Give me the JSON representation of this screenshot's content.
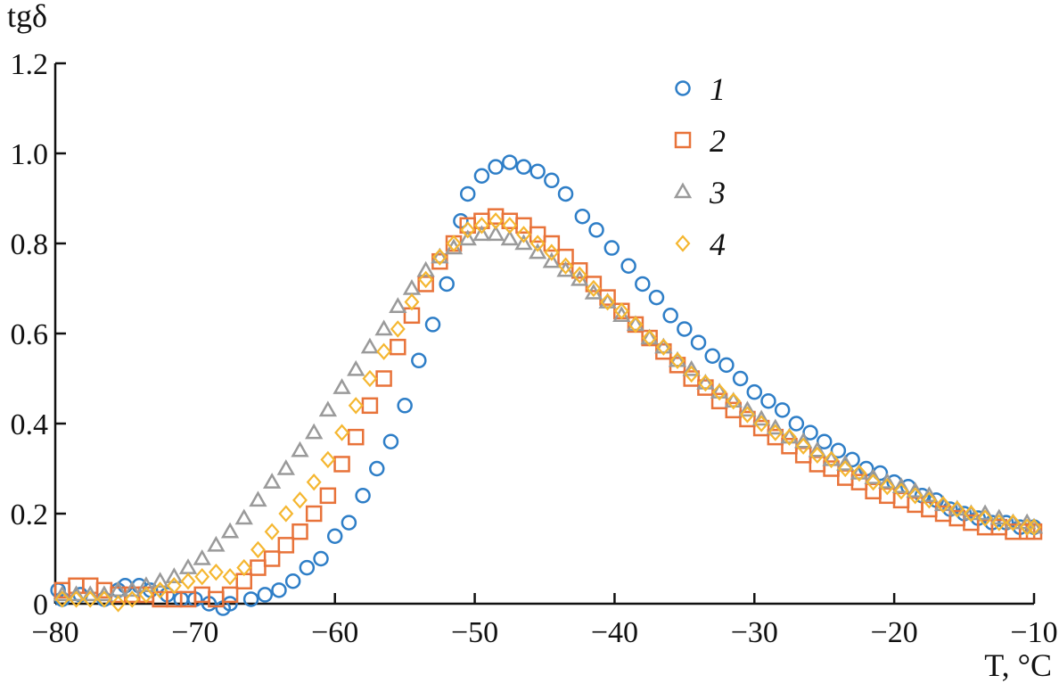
{
  "chart_data": {
    "type": "scatter",
    "title": "",
    "xlabel": "T, °C",
    "ylabel": "tgδ",
    "xlim": [
      -80,
      -10
    ],
    "ylim": [
      0,
      1.2
    ],
    "xticks": [
      -80,
      -70,
      -60,
      -50,
      -40,
      -30,
      -20,
      -10
    ],
    "xtick_labels": [
      "−80",
      "−70",
      "−60",
      "−50",
      "−40",
      "−30",
      "−20",
      "−10"
    ],
    "yticks": [
      0,
      0.2,
      0.4,
      0.6,
      0.8,
      1.0,
      1.2
    ],
    "ytick_labels": [
      "0",
      "0.2",
      "0.4",
      "0.6",
      "0.8",
      "1.0",
      "1.2"
    ],
    "grid": false,
    "legend_position": "top-right",
    "series": [
      {
        "name": "1",
        "marker": "circle",
        "color": "#2E7EC7",
        "points": [
          [
            -79.8,
            0.03
          ],
          [
            -79.5,
            0.01
          ],
          [
            -78.2,
            0.02
          ],
          [
            -76.5,
            0.01
          ],
          [
            -75.5,
            0.03
          ],
          [
            -75,
            0.04
          ],
          [
            -74,
            0.04
          ],
          [
            -73.2,
            0.03
          ],
          [
            -72,
            0.02
          ],
          [
            -71,
            0.01
          ],
          [
            -70,
            0.01
          ],
          [
            -69,
            0.0
          ],
          [
            -68,
            -0.01
          ],
          [
            -67.5,
            0.0
          ],
          [
            -66,
            0.01
          ],
          [
            -65,
            0.02
          ],
          [
            -64,
            0.03
          ],
          [
            -63,
            0.05
          ],
          [
            -62,
            0.08
          ],
          [
            -61,
            0.1
          ],
          [
            -60,
            0.15
          ],
          [
            -59,
            0.18
          ],
          [
            -58,
            0.24
          ],
          [
            -57,
            0.3
          ],
          [
            -56,
            0.36
          ],
          [
            -55,
            0.44
          ],
          [
            -54,
            0.54
          ],
          [
            -53,
            0.62
          ],
          [
            -52,
            0.71
          ],
          [
            -51,
            0.85
          ],
          [
            -50.5,
            0.91
          ],
          [
            -49.5,
            0.95
          ],
          [
            -48.5,
            0.97
          ],
          [
            -47.5,
            0.98
          ],
          [
            -46.5,
            0.97
          ],
          [
            -45.5,
            0.96
          ],
          [
            -44.5,
            0.94
          ],
          [
            -43.5,
            0.91
          ],
          [
            -42.3,
            0.86
          ],
          [
            -41.3,
            0.83
          ],
          [
            -40.2,
            0.79
          ],
          [
            -39,
            0.75
          ],
          [
            -38,
            0.71
          ],
          [
            -37,
            0.68
          ],
          [
            -36,
            0.64
          ],
          [
            -35,
            0.61
          ],
          [
            -34,
            0.58
          ],
          [
            -33,
            0.55
          ],
          [
            -32,
            0.53
          ],
          [
            -31,
            0.5
          ],
          [
            -30,
            0.47
          ],
          [
            -29,
            0.45
          ],
          [
            -28,
            0.43
          ],
          [
            -27,
            0.4
          ],
          [
            -26,
            0.38
          ],
          [
            -25,
            0.36
          ],
          [
            -24,
            0.34
          ],
          [
            -23,
            0.32
          ],
          [
            -22,
            0.3
          ],
          [
            -21,
            0.29
          ],
          [
            -20,
            0.27
          ],
          [
            -19,
            0.26
          ],
          [
            -18,
            0.24
          ],
          [
            -17,
            0.23
          ],
          [
            -16,
            0.21
          ],
          [
            -15,
            0.2
          ],
          [
            -14,
            0.19
          ],
          [
            -13,
            0.18
          ],
          [
            -12,
            0.18
          ],
          [
            -11,
            0.17
          ],
          [
            -10,
            0.17
          ]
        ]
      },
      {
        "name": "2",
        "marker": "square",
        "color": "#E8733A",
        "points": [
          [
            -79.5,
            0.03
          ],
          [
            -78.5,
            0.04
          ],
          [
            -77.5,
            0.04
          ],
          [
            -76.5,
            0.03
          ],
          [
            -75.5,
            0.02
          ],
          [
            -74.5,
            0.02
          ],
          [
            -73.5,
            0.02
          ],
          [
            -72.5,
            0.01
          ],
          [
            -71.5,
            0.01
          ],
          [
            -70.5,
            0.01
          ],
          [
            -69.5,
            0.02
          ],
          [
            -68.5,
            0.01
          ],
          [
            -67.5,
            0.02
          ],
          [
            -66.5,
            0.05
          ],
          [
            -65.5,
            0.08
          ],
          [
            -64.5,
            0.1
          ],
          [
            -63.5,
            0.13
          ],
          [
            -62.5,
            0.16
          ],
          [
            -61.5,
            0.2
          ],
          [
            -60.5,
            0.24
          ],
          [
            -59.5,
            0.31
          ],
          [
            -58.5,
            0.37
          ],
          [
            -57.5,
            0.44
          ],
          [
            -56.5,
            0.5
          ],
          [
            -55.5,
            0.57
          ],
          [
            -54.5,
            0.64
          ],
          [
            -53.5,
            0.71
          ],
          [
            -52.5,
            0.76
          ],
          [
            -51.5,
            0.8
          ],
          [
            -50.5,
            0.84
          ],
          [
            -49.5,
            0.85
          ],
          [
            -48.5,
            0.86
          ],
          [
            -47.5,
            0.85
          ],
          [
            -46.5,
            0.84
          ],
          [
            -45.5,
            0.82
          ],
          [
            -44.5,
            0.8
          ],
          [
            -43.5,
            0.77
          ],
          [
            -42.5,
            0.74
          ],
          [
            -41.5,
            0.71
          ],
          [
            -40.5,
            0.68
          ],
          [
            -39.5,
            0.65
          ],
          [
            -38.5,
            0.62
          ],
          [
            -37.5,
            0.59
          ],
          [
            -36.5,
            0.56
          ],
          [
            -35.5,
            0.53
          ],
          [
            -34.5,
            0.5
          ],
          [
            -33.5,
            0.48
          ],
          [
            -32.5,
            0.45
          ],
          [
            -31.5,
            0.43
          ],
          [
            -30.5,
            0.41
          ],
          [
            -29.5,
            0.39
          ],
          [
            -28.5,
            0.37
          ],
          [
            -27.5,
            0.35
          ],
          [
            -26.5,
            0.33
          ],
          [
            -25.5,
            0.31
          ],
          [
            -24.5,
            0.3
          ],
          [
            -23.5,
            0.28
          ],
          [
            -22.5,
            0.27
          ],
          [
            -21.5,
            0.25
          ],
          [
            -20.5,
            0.24
          ],
          [
            -19.5,
            0.23
          ],
          [
            -18.5,
            0.22
          ],
          [
            -17.5,
            0.21
          ],
          [
            -16.5,
            0.2
          ],
          [
            -15.5,
            0.19
          ],
          [
            -14.5,
            0.18
          ],
          [
            -13.5,
            0.17
          ],
          [
            -12.5,
            0.17
          ],
          [
            -11.5,
            0.16
          ],
          [
            -10.5,
            0.16
          ],
          [
            -10,
            0.16
          ]
        ]
      },
      {
        "name": "3",
        "marker": "triangle",
        "color": "#9A9A9A",
        "points": [
          [
            -79.5,
            0.02
          ],
          [
            -78.5,
            0.02
          ],
          [
            -77.5,
            0.02
          ],
          [
            -76.5,
            0.02
          ],
          [
            -75.5,
            0.03
          ],
          [
            -74.5,
            0.03
          ],
          [
            -73.5,
            0.04
          ],
          [
            -72.5,
            0.05
          ],
          [
            -71.5,
            0.06
          ],
          [
            -70.5,
            0.08
          ],
          [
            -69.5,
            0.1
          ],
          [
            -68.5,
            0.13
          ],
          [
            -67.5,
            0.16
          ],
          [
            -66.5,
            0.19
          ],
          [
            -65.5,
            0.23
          ],
          [
            -64.5,
            0.27
          ],
          [
            -63.5,
            0.3
          ],
          [
            -62.5,
            0.34
          ],
          [
            -61.5,
            0.38
          ],
          [
            -60.5,
            0.43
          ],
          [
            -59.5,
            0.48
          ],
          [
            -58.5,
            0.52
          ],
          [
            -57.5,
            0.57
          ],
          [
            -56.5,
            0.61
          ],
          [
            -55.5,
            0.66
          ],
          [
            -54.5,
            0.7
          ],
          [
            -53.5,
            0.74
          ],
          [
            -52.5,
            0.77
          ],
          [
            -51.5,
            0.79
          ],
          [
            -50.5,
            0.81
          ],
          [
            -49.5,
            0.82
          ],
          [
            -48.5,
            0.82
          ],
          [
            -47.5,
            0.81
          ],
          [
            -46.5,
            0.8
          ],
          [
            -45.5,
            0.78
          ],
          [
            -44.5,
            0.76
          ],
          [
            -43.5,
            0.74
          ],
          [
            -42.5,
            0.72
          ],
          [
            -41.5,
            0.69
          ],
          [
            -40.5,
            0.67
          ],
          [
            -39.5,
            0.64
          ],
          [
            -38.5,
            0.62
          ],
          [
            -37.5,
            0.59
          ],
          [
            -36.5,
            0.57
          ],
          [
            -35.5,
            0.54
          ],
          [
            -34.5,
            0.52
          ],
          [
            -33.5,
            0.49
          ],
          [
            -32.5,
            0.47
          ],
          [
            -31.5,
            0.45
          ],
          [
            -30.5,
            0.43
          ],
          [
            -29.5,
            0.41
          ],
          [
            -28.5,
            0.39
          ],
          [
            -27.5,
            0.37
          ],
          [
            -26.5,
            0.36
          ],
          [
            -25.5,
            0.34
          ],
          [
            -24.5,
            0.32
          ],
          [
            -23.5,
            0.31
          ],
          [
            -22.5,
            0.29
          ],
          [
            -21.5,
            0.28
          ],
          [
            -20.5,
            0.27
          ],
          [
            -19.5,
            0.26
          ],
          [
            -18.5,
            0.25
          ],
          [
            -17.5,
            0.24
          ],
          [
            -16.5,
            0.22
          ],
          [
            -15.5,
            0.21
          ],
          [
            -14.5,
            0.2
          ],
          [
            -13.5,
            0.2
          ],
          [
            -12.5,
            0.19
          ],
          [
            -11.5,
            0.18
          ],
          [
            -10.5,
            0.18
          ],
          [
            -10,
            0.17
          ]
        ]
      },
      {
        "name": "4",
        "marker": "diamond",
        "color": "#F5B731",
        "points": [
          [
            -79.5,
            0.01
          ],
          [
            -78.5,
            0.01
          ],
          [
            -77.5,
            0.01
          ],
          [
            -76.5,
            0.01
          ],
          [
            -75.5,
            0.0
          ],
          [
            -74.5,
            0.01
          ],
          [
            -73.5,
            0.02
          ],
          [
            -72.5,
            0.03
          ],
          [
            -71.5,
            0.04
          ],
          [
            -70.5,
            0.05
          ],
          [
            -69.5,
            0.06
          ],
          [
            -68.5,
            0.07
          ],
          [
            -67.5,
            0.06
          ],
          [
            -66.5,
            0.08
          ],
          [
            -65.5,
            0.12
          ],
          [
            -64.5,
            0.16
          ],
          [
            -63.5,
            0.2
          ],
          [
            -62.5,
            0.23
          ],
          [
            -61.5,
            0.27
          ],
          [
            -60.5,
            0.32
          ],
          [
            -59.5,
            0.38
          ],
          [
            -58.5,
            0.44
          ],
          [
            -57.5,
            0.5
          ],
          [
            -56.5,
            0.56
          ],
          [
            -55.5,
            0.61
          ],
          [
            -54.5,
            0.67
          ],
          [
            -53.5,
            0.72
          ],
          [
            -52.5,
            0.77
          ],
          [
            -51.5,
            0.8
          ],
          [
            -50.5,
            0.83
          ],
          [
            -49.5,
            0.84
          ],
          [
            -48.5,
            0.85
          ],
          [
            -47.5,
            0.84
          ],
          [
            -46.5,
            0.82
          ],
          [
            -45.5,
            0.8
          ],
          [
            -44.5,
            0.78
          ],
          [
            -43.5,
            0.75
          ],
          [
            -42.5,
            0.73
          ],
          [
            -41.5,
            0.7
          ],
          [
            -40.5,
            0.67
          ],
          [
            -39.5,
            0.65
          ],
          [
            -38.5,
            0.62
          ],
          [
            -37.5,
            0.59
          ],
          [
            -36.5,
            0.57
          ],
          [
            -35.5,
            0.54
          ],
          [
            -34.5,
            0.51
          ],
          [
            -33.5,
            0.49
          ],
          [
            -32.5,
            0.47
          ],
          [
            -31.5,
            0.45
          ],
          [
            -30.5,
            0.42
          ],
          [
            -29.5,
            0.4
          ],
          [
            -28.5,
            0.38
          ],
          [
            -27.5,
            0.37
          ],
          [
            -26.5,
            0.35
          ],
          [
            -25.5,
            0.33
          ],
          [
            -24.5,
            0.32
          ],
          [
            -23.5,
            0.3
          ],
          [
            -22.5,
            0.29
          ],
          [
            -21.5,
            0.27
          ],
          [
            -20.5,
            0.26
          ],
          [
            -19.5,
            0.25
          ],
          [
            -18.5,
            0.24
          ],
          [
            -17.5,
            0.23
          ],
          [
            -16.5,
            0.22
          ],
          [
            -15.5,
            0.21
          ],
          [
            -14.5,
            0.2
          ],
          [
            -13.5,
            0.19
          ],
          [
            -12.5,
            0.18
          ],
          [
            -11.5,
            0.18
          ],
          [
            -10.5,
            0.17
          ],
          [
            -10,
            0.17
          ]
        ]
      }
    ]
  }
}
